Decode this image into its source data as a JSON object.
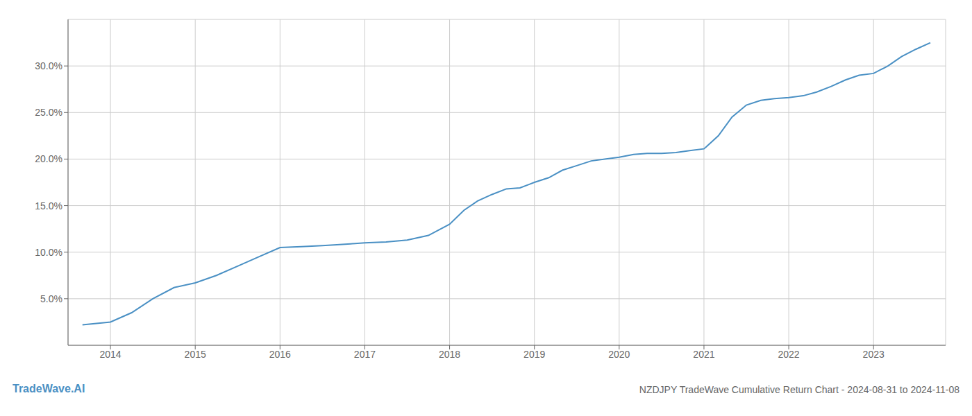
{
  "chart_data": {
    "type": "line",
    "title": "NZDJPY TradeWave Cumulative Return Chart - 2024-08-31 to 2024-11-08",
    "annotations": [
      "TradeWave.AI"
    ],
    "x": [
      2013.67,
      2014.0,
      2014.25,
      2014.5,
      2014.75,
      2015.0,
      2015.25,
      2015.5,
      2015.75,
      2016.0,
      2016.25,
      2016.5,
      2016.67,
      2016.83,
      2017.0,
      2017.25,
      2017.5,
      2017.75,
      2018.0,
      2018.17,
      2018.33,
      2018.5,
      2018.67,
      2018.83,
      2019.0,
      2019.17,
      2019.33,
      2019.5,
      2019.67,
      2019.83,
      2020.0,
      2020.17,
      2020.33,
      2020.5,
      2020.67,
      2020.83,
      2021.0,
      2021.17,
      2021.33,
      2021.5,
      2021.67,
      2021.83,
      2022.0,
      2022.17,
      2022.33,
      2022.5,
      2022.67,
      2022.83,
      2023.0,
      2023.17,
      2023.33,
      2023.5,
      2023.67
    ],
    "values": [
      2.2,
      2.5,
      3.5,
      5.0,
      6.2,
      6.7,
      7.5,
      8.5,
      9.5,
      10.5,
      10.6,
      10.7,
      10.8,
      10.9,
      11.0,
      11.1,
      11.3,
      11.8,
      13.0,
      14.5,
      15.5,
      16.2,
      16.8,
      16.9,
      17.5,
      18.0,
      18.8,
      19.3,
      19.8,
      20.0,
      20.2,
      20.5,
      20.6,
      20.6,
      20.7,
      20.9,
      21.1,
      22.5,
      24.5,
      25.8,
      26.3,
      26.5,
      26.6,
      26.8,
      27.2,
      27.8,
      28.5,
      29.0,
      29.2,
      30.0,
      31.0,
      31.8,
      32.5
    ],
    "color": "#4a90c4",
    "xlim": [
      2013.5,
      2023.85
    ],
    "xticks": [
      2014,
      2015,
      2016,
      2017,
      2018,
      2019,
      2020,
      2021,
      2022,
      2023
    ],
    "ylim": [
      0,
      35
    ],
    "yticks": [
      {
        "value": 5.0,
        "label": "5.0%"
      },
      {
        "value": 10.0,
        "label": "10.0%"
      },
      {
        "value": 15.0,
        "label": "15.0%"
      },
      {
        "value": 20.0,
        "label": "20.0%"
      },
      {
        "value": 25.0,
        "label": "25.0%"
      },
      {
        "value": 30.0,
        "label": "30.0%"
      }
    ],
    "grid": true
  }
}
